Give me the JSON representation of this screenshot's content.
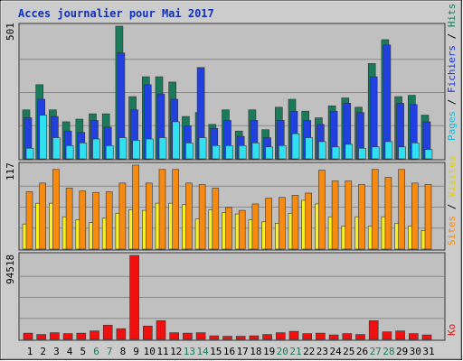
{
  "chart_data": [
    {
      "type": "bar",
      "title": "Acces journalier pour Mai 2017",
      "ymax_label": "501",
      "legend": [
        "Pages",
        "Fichiers",
        "Hits"
      ],
      "categories": [
        "1",
        "2",
        "3",
        "4",
        "5",
        "6",
        "7",
        "8",
        "9",
        "10",
        "11",
        "12",
        "13",
        "14",
        "15",
        "16",
        "17",
        "18",
        "19",
        "20",
        "21",
        "22",
        "23",
        "24",
        "25",
        "26",
        "27",
        "28",
        "29",
        "30",
        "31"
      ],
      "weekend_days": [
        "6",
        "7",
        "13",
        "14",
        "20",
        "21",
        "27",
        "28"
      ],
      "ylim": [
        0,
        501
      ],
      "series": [
        {
          "name": "Hits",
          "color": "#1a7a5a",
          "values": [
            185,
            280,
            185,
            140,
            150,
            170,
            170,
            501,
            235,
            310,
            310,
            290,
            160,
            175,
            130,
            185,
            105,
            185,
            110,
            195,
            225,
            180,
            155,
            200,
            230,
            195,
            360,
            450,
            235,
            240,
            165
          ]
        },
        {
          "name": "Fichiers",
          "color": "#2040e0",
          "values": [
            155,
            225,
            160,
            105,
            100,
            145,
            120,
            400,
            185,
            280,
            245,
            225,
            125,
            345,
            115,
            145,
            85,
            145,
            80,
            145,
            180,
            145,
            130,
            180,
            210,
            175,
            310,
            430,
            210,
            205,
            140
          ]
        },
        {
          "name": "Pages",
          "color": "#30e0f0",
          "values": [
            40,
            165,
            80,
            50,
            60,
            75,
            50,
            80,
            70,
            75,
            80,
            140,
            60,
            80,
            50,
            50,
            50,
            60,
            45,
            50,
            95,
            80,
            65,
            45,
            55,
            40,
            45,
            65,
            45,
            60,
            35
          ]
        }
      ]
    },
    {
      "type": "bar",
      "ymax_label": "117",
      "legend": [
        "Sites",
        "Visites"
      ],
      "categories": [
        "1",
        "2",
        "3",
        "4",
        "5",
        "6",
        "7",
        "8",
        "9",
        "10",
        "11",
        "12",
        "13",
        "14",
        "15",
        "16",
        "17",
        "18",
        "19",
        "20",
        "21",
        "22",
        "23",
        "24",
        "25",
        "26",
        "27",
        "28",
        "29",
        "30",
        "31"
      ],
      "ylim": [
        0,
        117
      ],
      "series": [
        {
          "name": "Sites",
          "color": "#f88a10",
          "values": [
            80,
            92,
            111,
            85,
            81,
            79,
            80,
            92,
            117,
            92,
            111,
            111,
            92,
            90,
            85,
            58,
            54,
            63,
            71,
            72,
            75,
            78,
            110,
            95,
            95,
            90,
            111,
            100,
            111,
            92,
            90
          ]
        },
        {
          "name": "Visites",
          "color": "#f8f020",
          "values": [
            35,
            64,
            64,
            45,
            41,
            37,
            43,
            50,
            55,
            54,
            64,
            64,
            62,
            42,
            55,
            51,
            49,
            41,
            38,
            36,
            50,
            68,
            63,
            45,
            32,
            45,
            32,
            45,
            36,
            32,
            26
          ]
        }
      ]
    },
    {
      "type": "bar",
      "ymax_label": "94518",
      "legend": [
        "Ko"
      ],
      "categories": [
        "1",
        "2",
        "3",
        "4",
        "5",
        "6",
        "7",
        "8",
        "9",
        "10",
        "11",
        "12",
        "13",
        "14",
        "15",
        "16",
        "17",
        "18",
        "19",
        "20",
        "21",
        "22",
        "23",
        "24",
        "25",
        "26",
        "27",
        "28",
        "29",
        "30",
        "31"
      ],
      "ylim": [
        0,
        94518
      ],
      "series": [
        {
          "name": "Ko",
          "color": "#f01010",
          "values": [
            7000,
            5500,
            7500,
            6500,
            7000,
            9500,
            16000,
            12000,
            94518,
            15000,
            21000,
            7500,
            7000,
            7500,
            4000,
            3500,
            3500,
            4000,
            5500,
            7500,
            9000,
            6500,
            7000,
            5000,
            6500,
            5500,
            21000,
            8500,
            9500,
            6500,
            5000
          ]
        }
      ]
    }
  ]
}
